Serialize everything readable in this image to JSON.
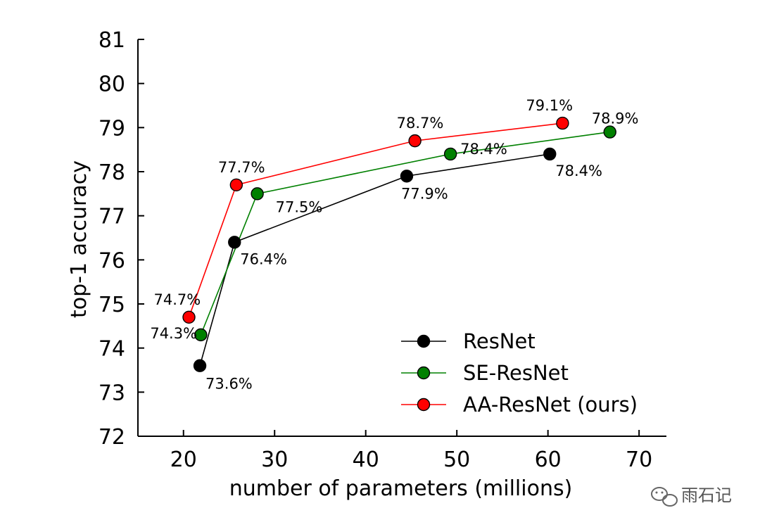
{
  "chart_data": {
    "type": "line",
    "title": "",
    "xlabel": "number of parameters (millions)",
    "ylabel": "top-1 accuracy",
    "xlim": [
      15,
      73
    ],
    "ylim": [
      72,
      81
    ],
    "xticks": [
      20,
      30,
      40,
      50,
      60,
      70
    ],
    "yticks": [
      72,
      73,
      74,
      75,
      76,
      77,
      78,
      79,
      80,
      81
    ],
    "grid": false,
    "legend_position": "bottom-right",
    "series": [
      {
        "name": "ResNet",
        "color": "#000000",
        "points": [
          {
            "x": 21.8,
            "y": 73.6,
            "label": "73.6%"
          },
          {
            "x": 25.6,
            "y": 76.4,
            "label": "76.4%"
          },
          {
            "x": 44.5,
            "y": 77.9,
            "label": "77.9%"
          },
          {
            "x": 60.2,
            "y": 78.4,
            "label": "78.4%"
          }
        ]
      },
      {
        "name": "SE-ResNet",
        "color": "#008000",
        "points": [
          {
            "x": 21.9,
            "y": 74.3,
            "label": "74.3%"
          },
          {
            "x": 28.1,
            "y": 77.5,
            "label": "77.5%"
          },
          {
            "x": 49.3,
            "y": 78.4,
            "label": "78.4%"
          },
          {
            "x": 66.8,
            "y": 78.9,
            "label": "78.9%"
          }
        ]
      },
      {
        "name": "AA-ResNet (ours)",
        "color": "#ff0000",
        "points": [
          {
            "x": 20.6,
            "y": 74.7,
            "label": "74.7%"
          },
          {
            "x": 25.8,
            "y": 77.7,
            "label": "77.7%"
          },
          {
            "x": 45.4,
            "y": 78.7,
            "label": "78.7%"
          },
          {
            "x": 61.6,
            "y": 79.1,
            "label": "79.1%"
          }
        ]
      }
    ]
  },
  "watermark": {
    "text": "雨石记"
  }
}
